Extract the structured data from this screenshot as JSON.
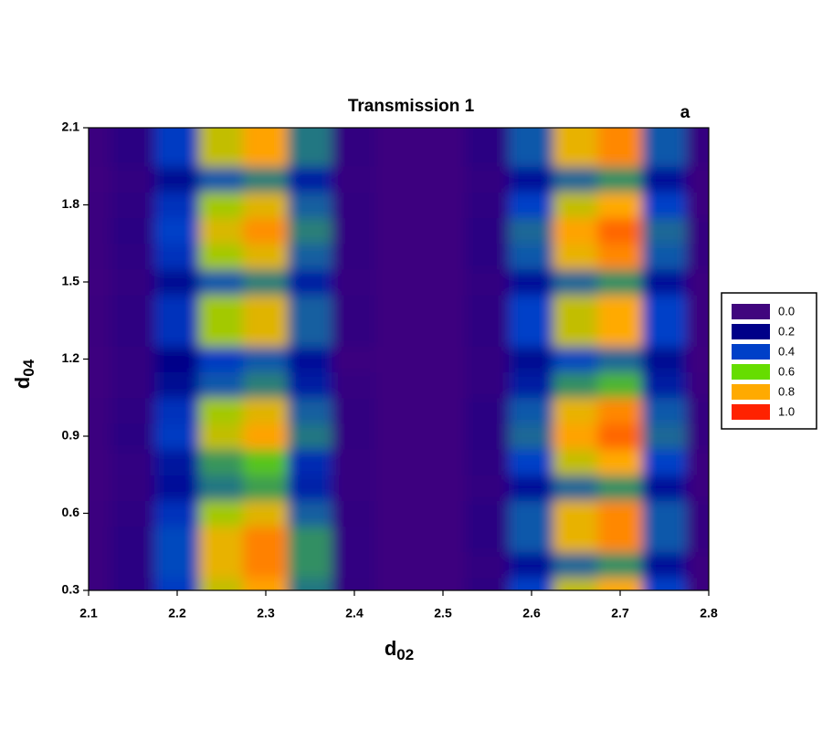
{
  "chart_data": {
    "type": "contour",
    "title": "Transmission 1",
    "annotation": "a",
    "xlabel": {
      "text": "d",
      "subscript": "02"
    },
    "ylabel": {
      "text": "d",
      "subscript": "04"
    },
    "xlim": [
      2.1,
      2.8
    ],
    "ylim": [
      0.3,
      2.1
    ],
    "xticks": [
      2.1,
      2.2,
      2.3,
      2.4,
      2.5,
      2.6,
      2.7,
      2.8
    ],
    "yticks": [
      0.3,
      0.6,
      0.9,
      1.2,
      1.5,
      1.8,
      2.1
    ],
    "levels": [
      {
        "value": 0,
        "label": "0.0"
      },
      0.2,
      0.4,
      0.6,
      0.8,
      {
        "value": 1,
        "label": "1.0"
      }
    ],
    "colors": [
      "#40067e",
      "#000088",
      "#0040c8",
      "#66dd00",
      "#ffaa00",
      "#ff2200"
    ],
    "x": [
      2.1,
      2.15,
      2.2,
      2.25,
      2.3,
      2.35,
      2.4,
      2.45,
      2.5,
      2.55,
      2.6,
      2.65,
      2.7,
      2.75,
      2.8
    ],
    "y": [
      0.3,
      0.4,
      0.5,
      0.6,
      0.7,
      0.8,
      0.9,
      1.0,
      1.1,
      1.2,
      1.3,
      1.4,
      1.5,
      1.6,
      1.7,
      1.8,
      1.9,
      2.0,
      2.1
    ],
    "z": [
      [
        0.02,
        0.07,
        0.38,
        0.72,
        0.81,
        0.47,
        0.04,
        0.01,
        0.01,
        0.06,
        0.4,
        0.72,
        0.8,
        0.4,
        0.02
      ],
      [
        0.02,
        0.07,
        0.41,
        0.77,
        0.86,
        0.5,
        0.05,
        0.01,
        0.01,
        0.04,
        0.25,
        0.45,
        0.5,
        0.25,
        0.02
      ],
      [
        0.02,
        0.07,
        0.41,
        0.77,
        0.86,
        0.5,
        0.05,
        0.01,
        0.01,
        0.07,
        0.43,
        0.77,
        0.85,
        0.43,
        0.03
      ],
      [
        0.02,
        0.06,
        0.36,
        0.68,
        0.76,
        0.44,
        0.04,
        0.01,
        0.01,
        0.07,
        0.43,
        0.77,
        0.85,
        0.43,
        0.03
      ],
      [
        0.01,
        0.04,
        0.25,
        0.47,
        0.52,
        0.3,
        0.03,
        0.01,
        0.01,
        0.04,
        0.25,
        0.45,
        0.5,
        0.25,
        0.02
      ],
      [
        0.01,
        0.05,
        0.27,
        0.51,
        0.57,
        0.33,
        0.03,
        0.01,
        0.01,
        0.06,
        0.4,
        0.72,
        0.8,
        0.4,
        0.02
      ],
      [
        0.02,
        0.07,
        0.38,
        0.72,
        0.81,
        0.47,
        0.04,
        0.01,
        0.01,
        0.07,
        0.45,
        0.81,
        0.9,
        0.45,
        0.03
      ],
      [
        0.02,
        0.06,
        0.36,
        0.68,
        0.76,
        0.44,
        0.04,
        0.01,
        0.01,
        0.07,
        0.43,
        0.77,
        0.85,
        0.43,
        0.03
      ],
      [
        0.01,
        0.04,
        0.23,
        0.43,
        0.48,
        0.28,
        0.03,
        0.01,
        0.01,
        0.04,
        0.28,
        0.5,
        0.55,
        0.28,
        0.02
      ],
      [
        0.01,
        0.04,
        0.2,
        0.38,
        0.43,
        0.25,
        0.02,
        0.01,
        0.01,
        0.04,
        0.23,
        0.41,
        0.45,
        0.23,
        0.01
      ],
      [
        0.02,
        0.06,
        0.36,
        0.68,
        0.76,
        0.44,
        0.04,
        0.01,
        0.01,
        0.06,
        0.4,
        0.72,
        0.8,
        0.4,
        0.02
      ],
      [
        0.02,
        0.06,
        0.36,
        0.68,
        0.76,
        0.44,
        0.04,
        0.01,
        0.01,
        0.06,
        0.4,
        0.72,
        0.8,
        0.4,
        0.02
      ],
      [
        0.01,
        0.04,
        0.23,
        0.43,
        0.48,
        0.28,
        0.03,
        0.01,
        0.01,
        0.04,
        0.25,
        0.45,
        0.5,
        0.25,
        0.02
      ],
      [
        0.02,
        0.06,
        0.36,
        0.68,
        0.76,
        0.44,
        0.04,
        0.01,
        0.01,
        0.07,
        0.43,
        0.77,
        0.85,
        0.43,
        0.03
      ],
      [
        0.02,
        0.07,
        0.4,
        0.75,
        0.84,
        0.48,
        0.04,
        0.01,
        0.01,
        0.07,
        0.45,
        0.81,
        0.9,
        0.45,
        0.03
      ],
      [
        0.02,
        0.06,
        0.36,
        0.68,
        0.76,
        0.44,
        0.04,
        0.01,
        0.01,
        0.06,
        0.4,
        0.72,
        0.8,
        0.4,
        0.02
      ],
      [
        0.01,
        0.04,
        0.23,
        0.43,
        0.48,
        0.28,
        0.03,
        0.01,
        0.01,
        0.04,
        0.25,
        0.45,
        0.5,
        0.25,
        0.02
      ],
      [
        0.02,
        0.07,
        0.38,
        0.72,
        0.81,
        0.47,
        0.04,
        0.01,
        0.01,
        0.07,
        0.43,
        0.77,
        0.85,
        0.43,
        0.03
      ],
      [
        0.02,
        0.07,
        0.38,
        0.72,
        0.81,
        0.47,
        0.04,
        0.01,
        0.01,
        0.07,
        0.43,
        0.77,
        0.85,
        0.43,
        0.03
      ]
    ]
  }
}
